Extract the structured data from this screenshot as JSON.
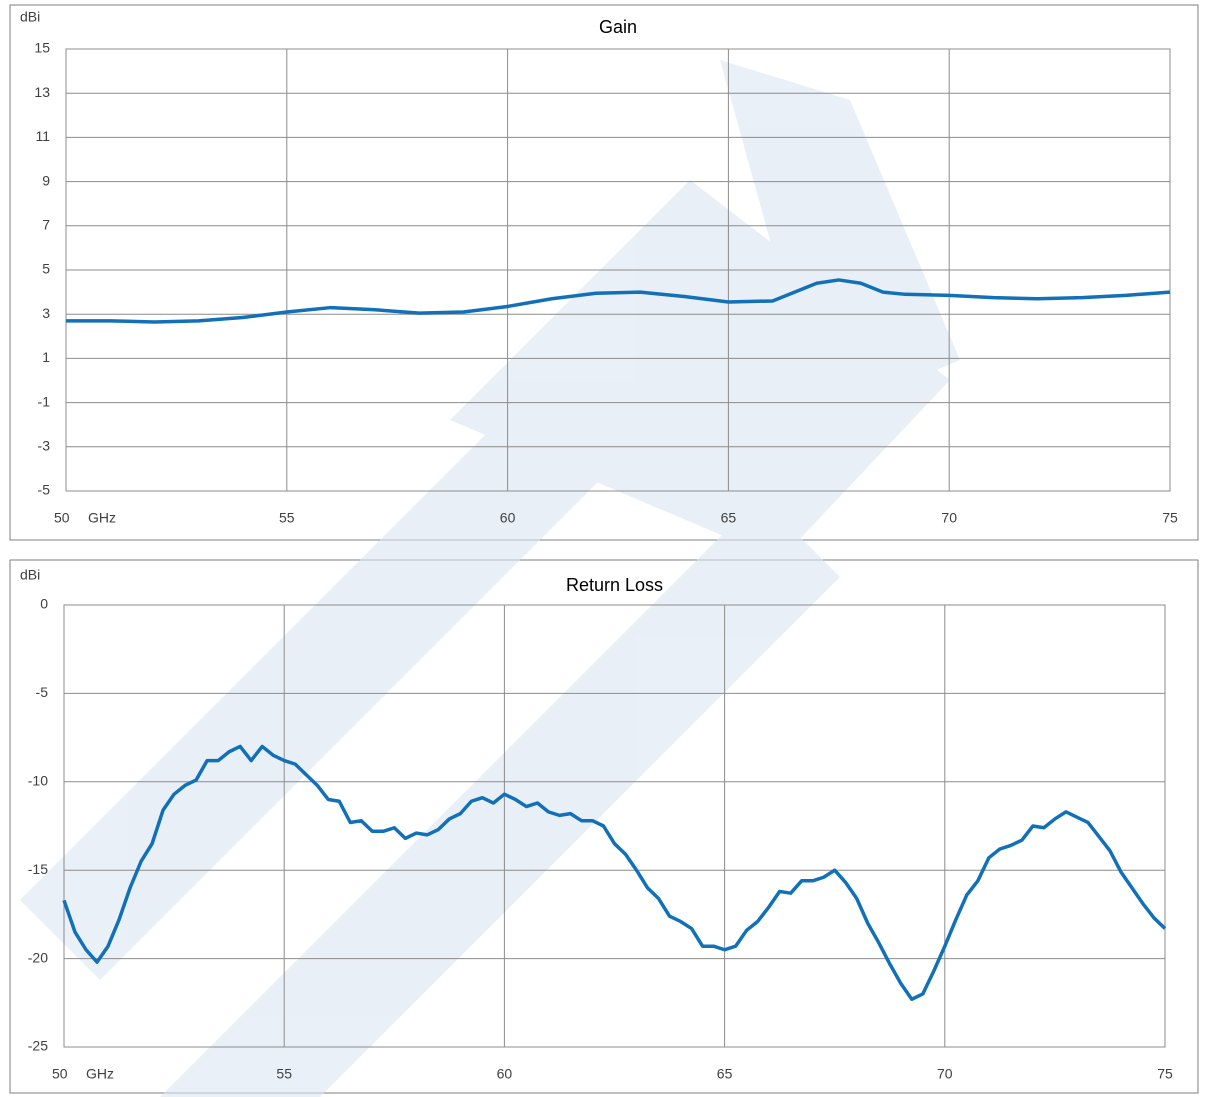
{
  "chart_data": [
    {
      "type": "line",
      "title": "Gain",
      "y_label": "dBi",
      "x_label": "GHz",
      "x": [
        50,
        51,
        52,
        53,
        54,
        55,
        56,
        57,
        58,
        59,
        60,
        61,
        62,
        63,
        64,
        65,
        66,
        66.5,
        67,
        67.5,
        68,
        68.5,
        69,
        70,
        71,
        72,
        73,
        74,
        75
      ],
      "values": [
        2.7,
        2.7,
        2.65,
        2.7,
        2.85,
        3.1,
        3.3,
        3.2,
        3.05,
        3.1,
        3.35,
        3.7,
        3.95,
        4.0,
        3.8,
        3.55,
        3.6,
        4.0,
        4.4,
        4.55,
        4.4,
        4.0,
        3.9,
        3.85,
        3.75,
        3.7,
        3.75,
        3.85,
        4.0
      ],
      "color": "#1170b8",
      "xlim": [
        50,
        75
      ],
      "xticks": [
        50,
        55,
        60,
        65,
        70,
        75
      ],
      "ylim": [
        -5,
        15
      ],
      "yticks": [
        -5,
        -3,
        -1,
        1,
        3,
        5,
        7,
        9,
        11,
        13,
        15
      ],
      "grid": true
    },
    {
      "type": "line",
      "title": "Return Loss",
      "y_label": "dBi",
      "x_label": "GHz",
      "x": [
        50,
        50.25,
        50.5,
        50.75,
        51,
        51.25,
        51.5,
        51.75,
        52,
        52.25,
        52.5,
        52.75,
        53,
        53.25,
        53.5,
        53.75,
        54,
        54.25,
        54.5,
        54.75,
        55,
        55.25,
        55.5,
        55.75,
        56,
        56.25,
        56.5,
        56.75,
        57,
        57.25,
        57.5,
        57.75,
        58,
        58.25,
        58.5,
        58.75,
        59,
        59.25,
        59.5,
        59.75,
        60,
        60.25,
        60.5,
        60.75,
        61,
        61.25,
        61.5,
        61.75,
        62,
        62.25,
        62.5,
        62.75,
        63,
        63.25,
        63.5,
        63.75,
        64,
        64.25,
        64.5,
        64.75,
        65,
        65.25,
        65.5,
        65.75,
        66,
        66.25,
        66.5,
        66.75,
        67,
        67.25,
        67.5,
        67.75,
        68,
        68.25,
        68.5,
        68.75,
        69,
        69.25,
        69.5,
        69.75,
        70,
        70.25,
        70.5,
        70.75,
        71,
        71.25,
        71.5,
        71.75,
        72,
        72.25,
        72.5,
        72.75,
        73,
        73.25,
        73.5,
        73.75,
        74,
        74.25,
        74.5,
        74.75,
        75
      ],
      "values": [
        -16.7,
        -18.5,
        -19.5,
        -20.2,
        -19.3,
        -17.8,
        -16,
        -14.5,
        -13.5,
        -11.6,
        -10.7,
        -10.2,
        -9.9,
        -8.8,
        -8.8,
        -8.3,
        -8.0,
        -8.8,
        -8.0,
        -8.5,
        -8.8,
        -9.0,
        -9.6,
        -10.2,
        -11.0,
        -11.1,
        -12.3,
        -12.2,
        -12.8,
        -12.8,
        -12.6,
        -13.2,
        -12.9,
        -13.0,
        -12.7,
        -12.1,
        -11.8,
        -11.1,
        -10.9,
        -11.2,
        -10.7,
        -11.0,
        -11.4,
        -11.2,
        -11.7,
        -11.9,
        -11.8,
        -12.2,
        -12.2,
        -12.5,
        -13.5,
        -14.1,
        -15.0,
        -16.0,
        -16.6,
        -17.6,
        -17.9,
        -18.3,
        -19.3,
        -19.3,
        -19.5,
        -19.3,
        -18.4,
        -17.9,
        -17.1,
        -16.2,
        -16.3,
        -15.6,
        -15.6,
        -15.4,
        -15.0,
        -15.7,
        -16.6,
        -18.0,
        -19.1,
        -20.3,
        -21.4,
        -22.3,
        -22.0,
        -20.7,
        -19.3,
        -17.8,
        -16.4,
        -15.6,
        -14.3,
        -13.8,
        -13.6,
        -13.3,
        -12.5,
        -12.6,
        -12.1,
        -11.7,
        -12.0,
        -12.3,
        -13.1,
        -13.9,
        -15.1,
        -16.0,
        -16.9,
        -17.7,
        -18.3
      ],
      "color": "#1170b8",
      "xlim": [
        50,
        75
      ],
      "xticks": [
        50,
        55,
        60,
        65,
        70,
        75
      ],
      "ylim": [
        -25,
        0
      ],
      "yticks": [
        -25,
        -20,
        -15,
        -10,
        -5,
        0
      ],
      "grid": true
    }
  ]
}
